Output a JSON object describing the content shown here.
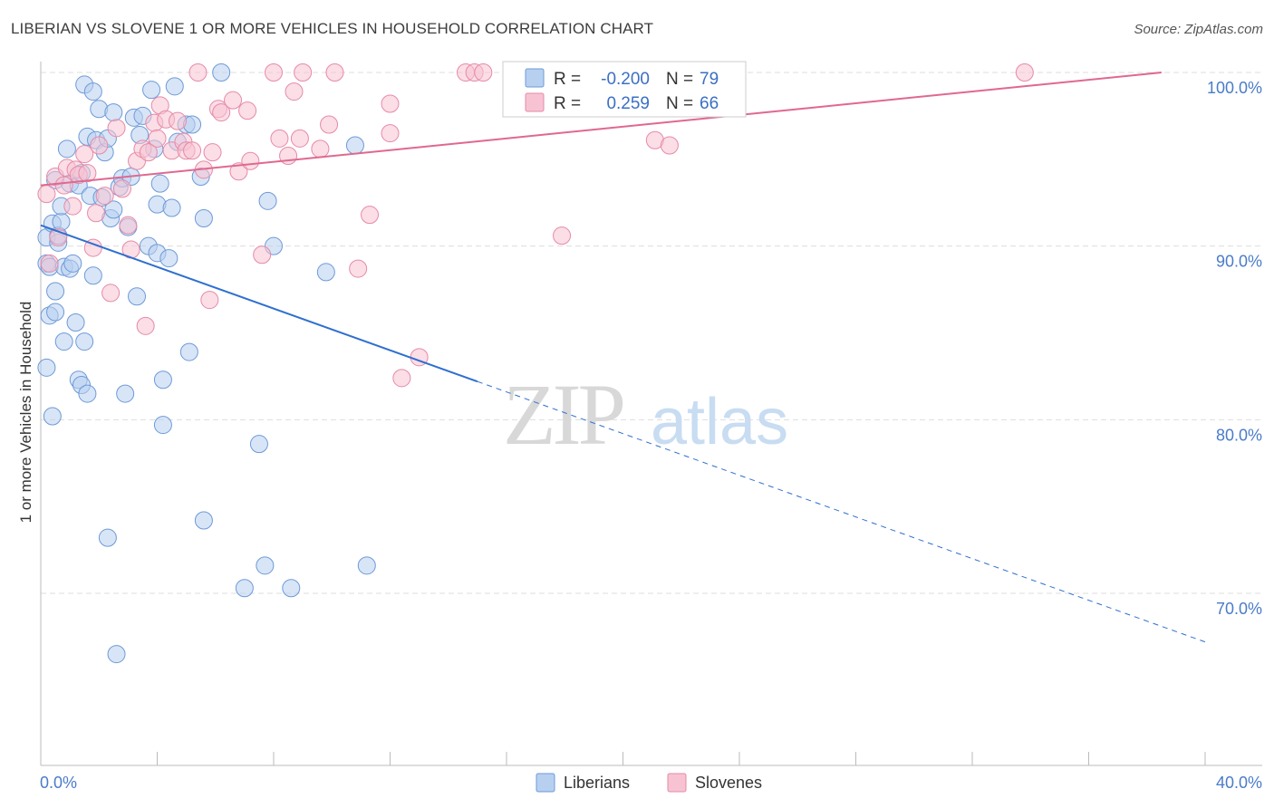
{
  "title": "LIBERIAN VS SLOVENE 1 OR MORE VEHICLES IN HOUSEHOLD CORRELATION CHART",
  "source": "Source: ZipAtlas.com",
  "watermark": {
    "zip": "ZIP",
    "atlas": "atlas"
  },
  "colors": {
    "blue_fill": "#b8d0f0",
    "blue_stroke": "#6d9ad8",
    "blue_line": "#2f6fd0",
    "pink_fill": "#f7c3d2",
    "pink_stroke": "#e68aa8",
    "pink_line": "#e0688f",
    "tick_text": "#4a7cc9",
    "grid": "#dddddd"
  },
  "legend": {
    "r_label": "R =",
    "n_label": "N =",
    "rows": [
      {
        "series": "Liberians",
        "r": "-0.200",
        "n": "79"
      },
      {
        "series": "Slovenes",
        "r": "0.259",
        "n": "66"
      }
    ]
  },
  "chart_data": {
    "type": "scatter",
    "title": "LIBERIAN VS SLOVENE 1 OR MORE VEHICLES IN HOUSEHOLD CORRELATION CHART",
    "xlabel": "",
    "ylabel": "1 or more Vehicles in Household",
    "xlim": [
      0,
      40
    ],
    "ylim": [
      61,
      101.5
    ],
    "x_tick_labels": [
      "0.0%",
      "40.0%"
    ],
    "y_ticks": [
      70,
      80,
      90,
      100
    ],
    "y_tick_labels": [
      "70.0%",
      "80.0%",
      "90.0%",
      "100.0%"
    ],
    "grid": true,
    "legend_position": "bottom-center",
    "series": [
      {
        "name": "Liberians",
        "color": "#b8d0f0",
        "trend": {
          "x": [
            0,
            15
          ],
          "y": [
            91.2,
            82.2
          ],
          "dashed_to_x": 40,
          "dashed_to_y": 67.2
        },
        "points": [
          [
            0.2,
            83
          ],
          [
            0.2,
            89
          ],
          [
            0.2,
            90.5
          ],
          [
            0.3,
            86
          ],
          [
            0.3,
            88.8
          ],
          [
            0.4,
            80.2
          ],
          [
            0.4,
            91.3
          ],
          [
            0.5,
            86.2
          ],
          [
            0.5,
            87.4
          ],
          [
            0.5,
            93.8
          ],
          [
            0.6,
            90.2
          ],
          [
            0.6,
            90.6
          ],
          [
            0.7,
            91.4
          ],
          [
            0.7,
            92.3
          ],
          [
            0.8,
            84.5
          ],
          [
            0.8,
            88.8
          ],
          [
            0.9,
            95.6
          ],
          [
            1.0,
            88.7
          ],
          [
            1.0,
            93.6
          ],
          [
            1.1,
            89
          ],
          [
            1.2,
            85.6
          ],
          [
            1.3,
            82.3
          ],
          [
            1.3,
            93.5
          ],
          [
            1.4,
            82
          ],
          [
            1.4,
            94.2
          ],
          [
            1.5,
            99.3
          ],
          [
            1.5,
            84.5
          ],
          [
            1.6,
            96.3
          ],
          [
            1.6,
            81.5
          ],
          [
            1.7,
            92.9
          ],
          [
            1.8,
            88.3
          ],
          [
            1.8,
            98.9
          ],
          [
            1.9,
            96.1
          ],
          [
            2.0,
            97.9
          ],
          [
            2.1,
            92.8
          ],
          [
            2.2,
            95.4
          ],
          [
            2.3,
            96.2
          ],
          [
            2.3,
            73.2
          ],
          [
            2.4,
            91.6
          ],
          [
            2.5,
            92.1
          ],
          [
            2.5,
            97.7
          ],
          [
            2.6,
            66.5
          ],
          [
            2.7,
            93.4
          ],
          [
            2.8,
            93.9
          ],
          [
            2.9,
            81.5
          ],
          [
            3.0,
            91.1
          ],
          [
            3.1,
            94
          ],
          [
            3.2,
            97.4
          ],
          [
            3.3,
            87.1
          ],
          [
            3.4,
            96.4
          ],
          [
            3.5,
            97.5
          ],
          [
            3.7,
            90
          ],
          [
            3.8,
            99
          ],
          [
            3.9,
            95.6
          ],
          [
            4.0,
            89.6
          ],
          [
            4.0,
            92.4
          ],
          [
            4.1,
            93.6
          ],
          [
            4.2,
            79.7
          ],
          [
            4.2,
            82.3
          ],
          [
            4.4,
            89.3
          ],
          [
            4.5,
            92.2
          ],
          [
            4.6,
            99.2
          ],
          [
            4.7,
            96
          ],
          [
            5.0,
            97
          ],
          [
            5.1,
            83.9
          ],
          [
            5.5,
            94
          ],
          [
            5.6,
            74.2
          ],
          [
            5.6,
            91.6
          ],
          [
            6.2,
            100
          ],
          [
            7.0,
            70.3
          ],
          [
            7.5,
            78.6
          ],
          [
            7.7,
            71.6
          ],
          [
            7.8,
            92.6
          ],
          [
            8.0,
            90
          ],
          [
            8.6,
            70.3
          ],
          [
            9.8,
            88.5
          ],
          [
            10.8,
            95.8
          ],
          [
            11.2,
            71.6
          ],
          [
            5.2,
            97
          ]
        ]
      },
      {
        "name": "Slovenes",
        "color": "#f7c3d2",
        "trend": {
          "x": [
            0,
            38.5
          ],
          "y": [
            93.5,
            100
          ]
        },
        "points": [
          [
            0.2,
            93
          ],
          [
            0.3,
            89
          ],
          [
            0.5,
            94
          ],
          [
            0.6,
            90.5
          ],
          [
            0.8,
            93.5
          ],
          [
            0.9,
            94.5
          ],
          [
            1.1,
            92.3
          ],
          [
            1.2,
            94.4
          ],
          [
            1.3,
            94.1
          ],
          [
            1.5,
            95.3
          ],
          [
            1.6,
            94.2
          ],
          [
            1.8,
            89.9
          ],
          [
            1.9,
            91.9
          ],
          [
            2.0,
            95.8
          ],
          [
            2.2,
            92.9
          ],
          [
            2.4,
            87.3
          ],
          [
            2.6,
            96.8
          ],
          [
            2.8,
            93.3
          ],
          [
            3.0,
            91.2
          ],
          [
            3.1,
            89.8
          ],
          [
            3.3,
            94.9
          ],
          [
            3.5,
            95.6
          ],
          [
            3.6,
            85.4
          ],
          [
            3.7,
            95.4
          ],
          [
            3.9,
            97.1
          ],
          [
            4.0,
            96.2
          ],
          [
            4.1,
            98.1
          ],
          [
            4.3,
            97.3
          ],
          [
            4.5,
            95.5
          ],
          [
            4.7,
            97.2
          ],
          [
            4.9,
            96
          ],
          [
            5.0,
            95.5
          ],
          [
            5.2,
            95.5
          ],
          [
            5.4,
            100
          ],
          [
            5.6,
            94.4
          ],
          [
            5.8,
            86.9
          ],
          [
            5.9,
            95.4
          ],
          [
            6.1,
            97.9
          ],
          [
            6.2,
            97.7
          ],
          [
            6.6,
            98.4
          ],
          [
            6.8,
            94.3
          ],
          [
            7.1,
            97.8
          ],
          [
            7.2,
            94.9
          ],
          [
            7.6,
            89.5
          ],
          [
            8.0,
            100
          ],
          [
            8.2,
            96.2
          ],
          [
            8.5,
            95.2
          ],
          [
            8.7,
            98.9
          ],
          [
            8.9,
            96.2
          ],
          [
            9.0,
            100
          ],
          [
            9.6,
            95.6
          ],
          [
            9.9,
            97
          ],
          [
            10.1,
            100
          ],
          [
            10.9,
            88.7
          ],
          [
            11.3,
            91.8
          ],
          [
            12.0,
            98.2
          ],
          [
            12.0,
            96.5
          ],
          [
            12.4,
            82.4
          ],
          [
            13.0,
            83.6
          ],
          [
            14.6,
            100
          ],
          [
            14.9,
            100
          ],
          [
            15.2,
            100
          ],
          [
            17.9,
            90.6
          ],
          [
            21.1,
            96.1
          ],
          [
            21.6,
            95.8
          ],
          [
            33.8,
            100
          ]
        ]
      }
    ]
  },
  "bottom_legend": [
    {
      "label": "Liberians"
    },
    {
      "label": "Slovenes"
    }
  ]
}
